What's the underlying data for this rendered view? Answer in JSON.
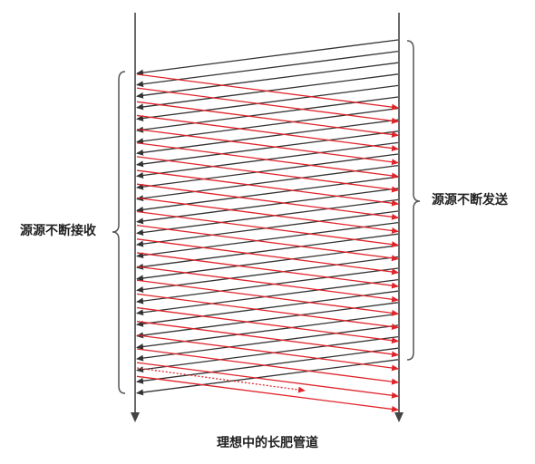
{
  "labels": {
    "left": "源源不断接收",
    "right": "源源不断发送",
    "caption": "理想中的长肥管道"
  },
  "colors": {
    "timeline": "#444444",
    "ack_line": "#333333",
    "data_line": "#e0242b",
    "brace": "#555555"
  },
  "diagram": {
    "black_arrow_count": 29,
    "red_arrow_count": 23,
    "dotted_red_arrow_count": 1
  }
}
